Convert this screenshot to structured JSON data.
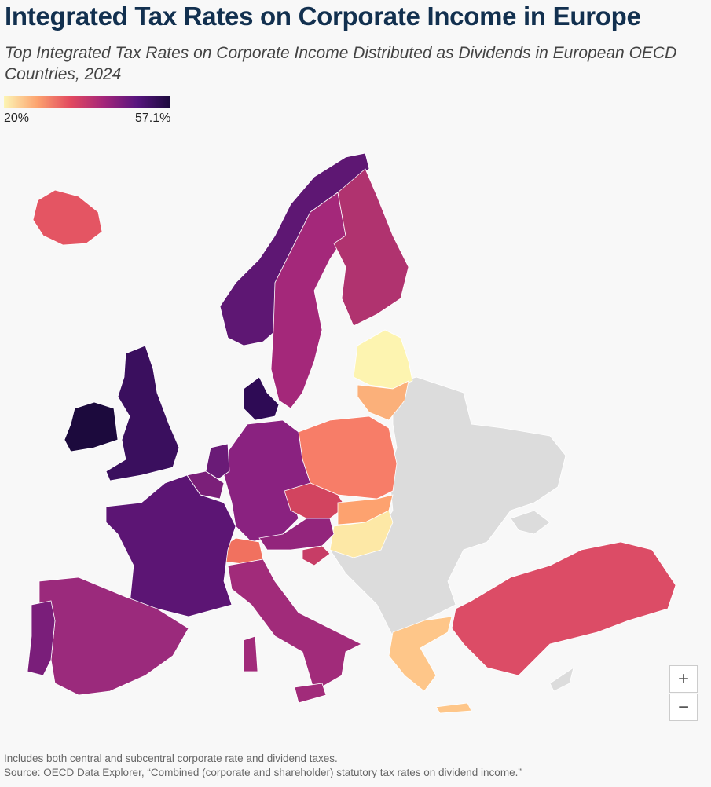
{
  "header": {
    "title": "Integrated Tax Rates on Corporate Income in Europe",
    "subtitle": "Top Integrated Tax Rates on Corporate Income Distributed as Dividends in European OECD Countries, 2024"
  },
  "legend": {
    "min_label": "20%",
    "max_label": "57.1%",
    "colors": [
      "#fcf5b5",
      "#fca36f",
      "#e2495f",
      "#a4267a",
      "#57157e",
      "#1c0a3d"
    ]
  },
  "zoom": {
    "in": "+",
    "out": "−"
  },
  "notes": [
    "Includes both central and subcentral corporate rate and dividend taxes.",
    "Source: OECD Data Explorer, “Combined (corporate and shareholder) statutory tax rates on dividend income.”"
  ]
}
